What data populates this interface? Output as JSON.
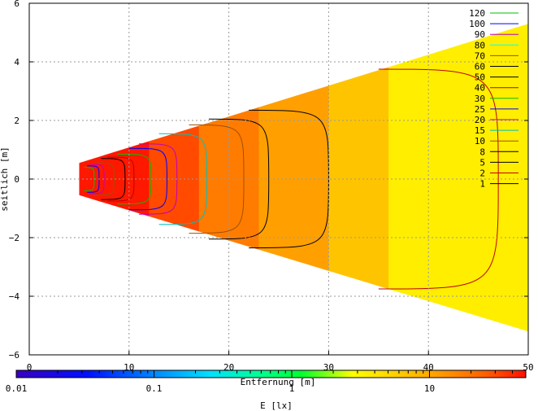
{
  "chart_data": {
    "type": "heatmap",
    "title": "",
    "xlabel": "Entfernung [m]",
    "ylabel": "seitlich [m]",
    "colorbar_label": "E [lx]",
    "xlim": [
      0,
      50
    ],
    "ylim": [
      -6,
      6
    ],
    "x_ticks": [
      "0",
      "10",
      "20",
      "30",
      "40",
      "50"
    ],
    "y_ticks": [
      "6",
      "4",
      "2",
      "0",
      "−2",
      "−4",
      "−6"
    ],
    "grid": true,
    "colorbar": {
      "scale": "log",
      "range": [
        0.01,
        50
      ],
      "ticks": [
        "0.01",
        "0.1",
        "1",
        "10"
      ]
    },
    "footprint": {
      "x_start": 5,
      "x_end": 50,
      "half_width_at_start": 0.55,
      "half_width_at_end_top": 5.3,
      "half_width_at_end_bottom": 5.2
    },
    "illuminance_bands": [
      {
        "x_from": 5,
        "x_to": 12,
        "color": "#ff1800"
      },
      {
        "x_from": 12,
        "x_to": 17,
        "color": "#ff4a00"
      },
      {
        "x_from": 17,
        "x_to": 23,
        "color": "#ff7c00"
      },
      {
        "x_from": 23,
        "x_to": 30,
        "color": "#ffa000"
      },
      {
        "x_from": 30,
        "x_to": 36,
        "color": "#ffc400"
      },
      {
        "x_from": 36,
        "x_to": 50,
        "color": "#ffee00"
      }
    ],
    "legend": {
      "placement": "top-right",
      "entries": [
        {
          "label": "120",
          "color": "#00c000"
        },
        {
          "label": "100",
          "color": "#0000ff"
        },
        {
          "label": "90",
          "color": "#c000c0"
        },
        {
          "label": "80",
          "color": "#00ffff"
        },
        {
          "label": "70",
          "color": "#a05000"
        },
        {
          "label": "60",
          "color": "#000000"
        },
        {
          "label": "50",
          "color": "#000000"
        },
        {
          "label": "40",
          "color": "#c00000"
        },
        {
          "label": "30",
          "color": "#00c000"
        },
        {
          "label": "25",
          "color": "#0000ff"
        },
        {
          "label": "20",
          "color": "#c000c0"
        },
        {
          "label": "15",
          "color": "#00c0c0"
        },
        {
          "label": "10",
          "color": "#a05000"
        },
        {
          "label": "8",
          "color": "#000000"
        },
        {
          "label": "5",
          "color": "#000000"
        },
        {
          "label": "2",
          "color": "#c00000"
        },
        {
          "label": "1",
          "color": "#000000"
        }
      ]
    },
    "contours": [
      {
        "level": 120,
        "color": "#00c000",
        "x_front": 5.5,
        "x_mid": 6.5,
        "half_height": 0.4
      },
      {
        "level": 100,
        "color": "#0000ff",
        "x_front": 5.8,
        "x_mid": 7.0,
        "half_height": 0.45
      },
      {
        "level": 90,
        "color": "#c000c0",
        "x_front": 6.0,
        "x_mid": 7.5,
        "half_height": 0.5
      },
      {
        "level": 70,
        "color": "#a05000",
        "x_front": 6.5,
        "x_mid": 8.5,
        "half_height": 0.55
      },
      {
        "level": 50,
        "color": "#000000",
        "x_front": 7.2,
        "x_mid": 9.6,
        "half_height": 0.7
      },
      {
        "level": 40,
        "color": "#c00000",
        "x_front": 7.8,
        "x_mid": 10.5,
        "half_height": 0.75
      },
      {
        "level": 30,
        "color": "#00c000",
        "x_front": 8.8,
        "x_mid": 12.2,
        "half_height": 0.85
      },
      {
        "level": 25,
        "color": "#0000ff",
        "x_front": 10.0,
        "x_mid": 13.8,
        "half_height": 1.05
      },
      {
        "level": 20,
        "color": "#c000c0",
        "x_front": 11.0,
        "x_mid": 14.8,
        "half_height": 1.2
      },
      {
        "level": 15,
        "color": "#00c0c0",
        "x_front": 13.0,
        "x_mid": 17.8,
        "half_height": 1.55
      },
      {
        "level": 10,
        "color": "#a05000",
        "x_front": 16.0,
        "x_mid": 21.5,
        "half_height": 1.85
      },
      {
        "level": 8,
        "color": "#000000",
        "x_front": 18.0,
        "x_mid": 24.0,
        "half_height": 2.05
      },
      {
        "level": 5,
        "color": "#000000",
        "x_front": 22.0,
        "x_mid": 30.0,
        "half_height": 2.35
      },
      {
        "level": 2,
        "color": "#c00000",
        "x_front": 35.0,
        "x_mid": 47.0,
        "half_height": 3.75
      }
    ]
  }
}
